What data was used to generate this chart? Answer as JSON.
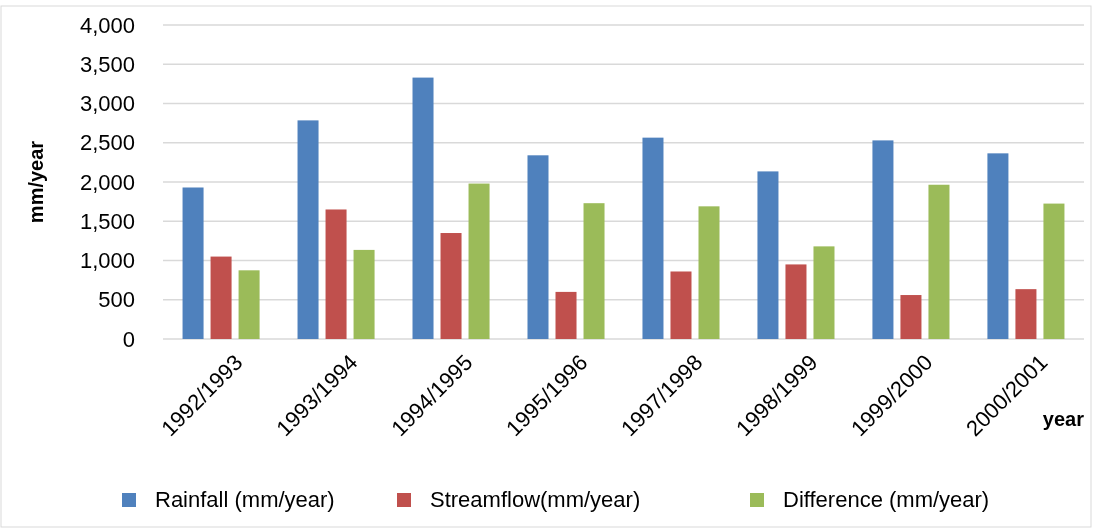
{
  "chart_data": {
    "type": "bar",
    "xlabel": "year",
    "ylabel": "mm/year",
    "categories": [
      "1992/1993",
      "1993/1994",
      "1994/1995",
      "1995/1996",
      "1997/1998",
      "1998/1999",
      "1999/2000",
      "2000/2001"
    ],
    "series": [
      {
        "name": "Rainfall (mm/year)",
        "color": "#4f81bd",
        "values": [
          1930,
          2785,
          3330,
          2340,
          2565,
          2135,
          2530,
          2365
        ]
      },
      {
        "name": "Streamflow(mm/year)",
        "color": "#c0504d",
        "values": [
          1050,
          1650,
          1350,
          600,
          860,
          950,
          560,
          635
        ]
      },
      {
        "name": "Difference (mm/year)",
        "color": "#9bbb59",
        "values": [
          875,
          1135,
          1980,
          1730,
          1690,
          1180,
          1965,
          1725
        ]
      }
    ],
    "ylim": [
      0,
      4000
    ],
    "yticks": [
      {
        "value": 0,
        "label": "0"
      },
      {
        "value": 500,
        "label": "500"
      },
      {
        "value": 1000,
        "label": "1,000"
      },
      {
        "value": 1500,
        "label": "1,500"
      },
      {
        "value": 2000,
        "label": "2,000"
      },
      {
        "value": 2500,
        "label": "2,500"
      },
      {
        "value": 3000,
        "label": "3,000"
      },
      {
        "value": 3500,
        "label": "3,500"
      },
      {
        "value": 4000,
        "label": "4,000"
      }
    ],
    "grid": "y",
    "legend": "bottom"
  }
}
